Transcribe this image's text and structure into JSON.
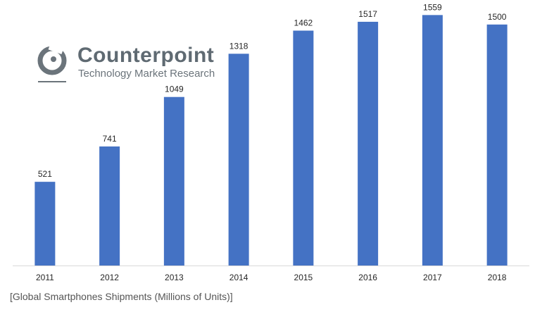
{
  "logo": {
    "name": "Counterpoint",
    "tagline": "Technology Market Research",
    "icon": "counterpoint-logo-icon"
  },
  "caption": "[Global Smartphones Shipments (Millions of Units)]",
  "colors": {
    "bar": "#4472c4",
    "axis": "#d9d9d9",
    "text": "#262626"
  },
  "chart_data": {
    "type": "bar",
    "title": "",
    "xlabel": "",
    "ylabel": "",
    "categories": [
      "2011",
      "2012",
      "2013",
      "2014",
      "2015",
      "2016",
      "2017",
      "2018"
    ],
    "values": [
      521,
      741,
      1049,
      1318,
      1462,
      1517,
      1559,
      1500
    ],
    "ylim": [
      0,
      1600
    ],
    "grid": false,
    "legend": "none",
    "data_labels": true
  }
}
